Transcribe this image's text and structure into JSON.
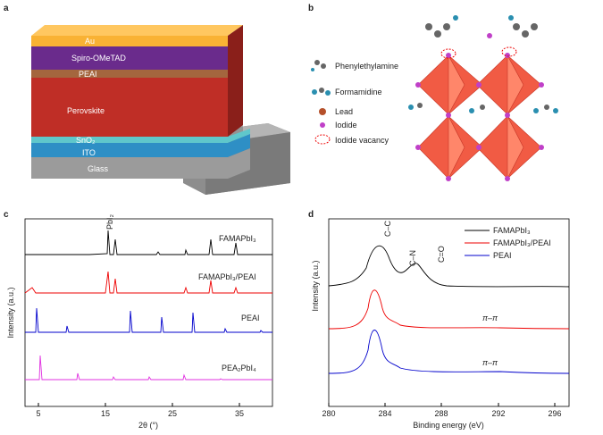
{
  "panels": {
    "a": {
      "label": "a",
      "layers": [
        "Au",
        "Spiro-OMeTAD",
        "PEAI",
        "Perovskite",
        "SnO₂",
        "ITO",
        "Glass"
      ]
    },
    "b": {
      "label": "b",
      "legend": [
        "Phenylethylamine",
        "Formamidine",
        "Lead",
        "Iodide",
        "Iodide vacancy"
      ]
    },
    "c": {
      "label": "c",
      "x_label": "2θ (°)",
      "y_label": "Intensity (a.u.)",
      "x_ticks": [
        "5",
        "15",
        "25",
        "35"
      ],
      "annotation": "PbI₂",
      "curves": [
        "FAMAPbI₃",
        "FAMAPbI₃/PEAI",
        "PEAI",
        "PEA₂PbI₄"
      ]
    },
    "d": {
      "label": "d",
      "x_label": "Binding energy (eV)",
      "y_label": "Intensity (a.u.)",
      "x_ticks": [
        "280",
        "284",
        "288",
        "292",
        "296"
      ],
      "legend": [
        "FAMAPbI₃",
        "FAMAPbI₃/PEAI",
        "PEAI"
      ],
      "annotations": [
        "C–C",
        "C–N",
        "C=O"
      ],
      "curve_labels": [
        "π–π",
        "π–π"
      ]
    }
  }
}
